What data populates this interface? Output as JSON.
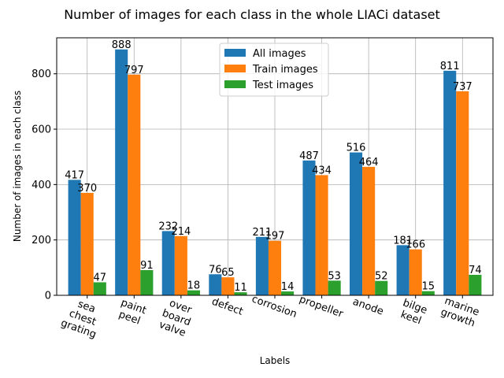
{
  "chart_data": {
    "type": "bar",
    "title": "Number of images for each class in the whole LIACi dataset",
    "xlabel": "Labels",
    "ylabel": "Number of images in each class",
    "ylim": [
      0,
      930
    ],
    "yticks": [
      "0",
      "200",
      "400",
      "600",
      "800"
    ],
    "grid": true,
    "legend_position": "top-center",
    "categories": [
      [
        "sea",
        "chest",
        "grating"
      ],
      [
        "paint",
        "peel"
      ],
      [
        "over",
        "board",
        "valve"
      ],
      [
        "defect"
      ],
      [
        "corrosion"
      ],
      [
        "propeller"
      ],
      [
        "anode"
      ],
      [
        "bilge",
        "keel"
      ],
      [
        "marine",
        "growth"
      ]
    ],
    "series": [
      {
        "name": "All images",
        "color": "#1f77b4",
        "values": [
          417,
          888,
          232,
          76,
          211,
          487,
          516,
          181,
          811
        ]
      },
      {
        "name": "Train images",
        "color": "#ff7f0e",
        "values": [
          370,
          797,
          214,
          65,
          197,
          434,
          464,
          166,
          737
        ]
      },
      {
        "name": "Test images",
        "color": "#2ca02c",
        "values": [
          47,
          91,
          18,
          11,
          14,
          53,
          52,
          15,
          74
        ]
      }
    ]
  }
}
